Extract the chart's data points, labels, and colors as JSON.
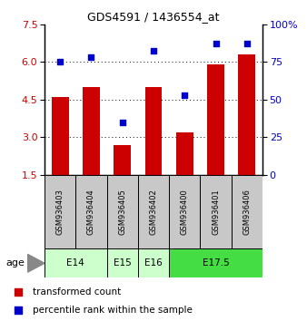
{
  "title": "GDS4591 / 1436554_at",
  "samples": [
    "GSM936403",
    "GSM936404",
    "GSM936405",
    "GSM936402",
    "GSM936400",
    "GSM936401",
    "GSM936406"
  ],
  "bar_values": [
    4.6,
    5.0,
    2.7,
    5.0,
    3.2,
    5.9,
    6.3
  ],
  "scatter_values": [
    75,
    78,
    35,
    82,
    53,
    87,
    87
  ],
  "bar_color": "#cc0000",
  "scatter_color": "#0000cc",
  "yleft_min": 1.5,
  "yleft_max": 7.5,
  "yleft_ticks": [
    1.5,
    3.0,
    4.5,
    6.0,
    7.5
  ],
  "yright_min": 0,
  "yright_max": 100,
  "yright_ticks": [
    0,
    25,
    50,
    75,
    100
  ],
  "yright_labels": [
    "0",
    "25",
    "50",
    "75",
    "100%"
  ],
  "grid_lines": [
    3.0,
    4.5,
    6.0
  ],
  "age_groups": [
    {
      "label": "E14",
      "start": 0,
      "end": 2,
      "color": "#ccffcc"
    },
    {
      "label": "E15",
      "start": 2,
      "end": 3,
      "color": "#ccffcc"
    },
    {
      "label": "E16",
      "start": 3,
      "end": 4,
      "color": "#ccffcc"
    },
    {
      "label": "E17.5",
      "start": 4,
      "end": 7,
      "color": "#44dd44"
    }
  ],
  "legend_red_label": "transformed count",
  "legend_blue_label": "percentile rank within the sample",
  "age_label": "age",
  "bar_width": 0.55,
  "sample_box_color": "#c8c8c8",
  "bg_color": "#ffffff"
}
